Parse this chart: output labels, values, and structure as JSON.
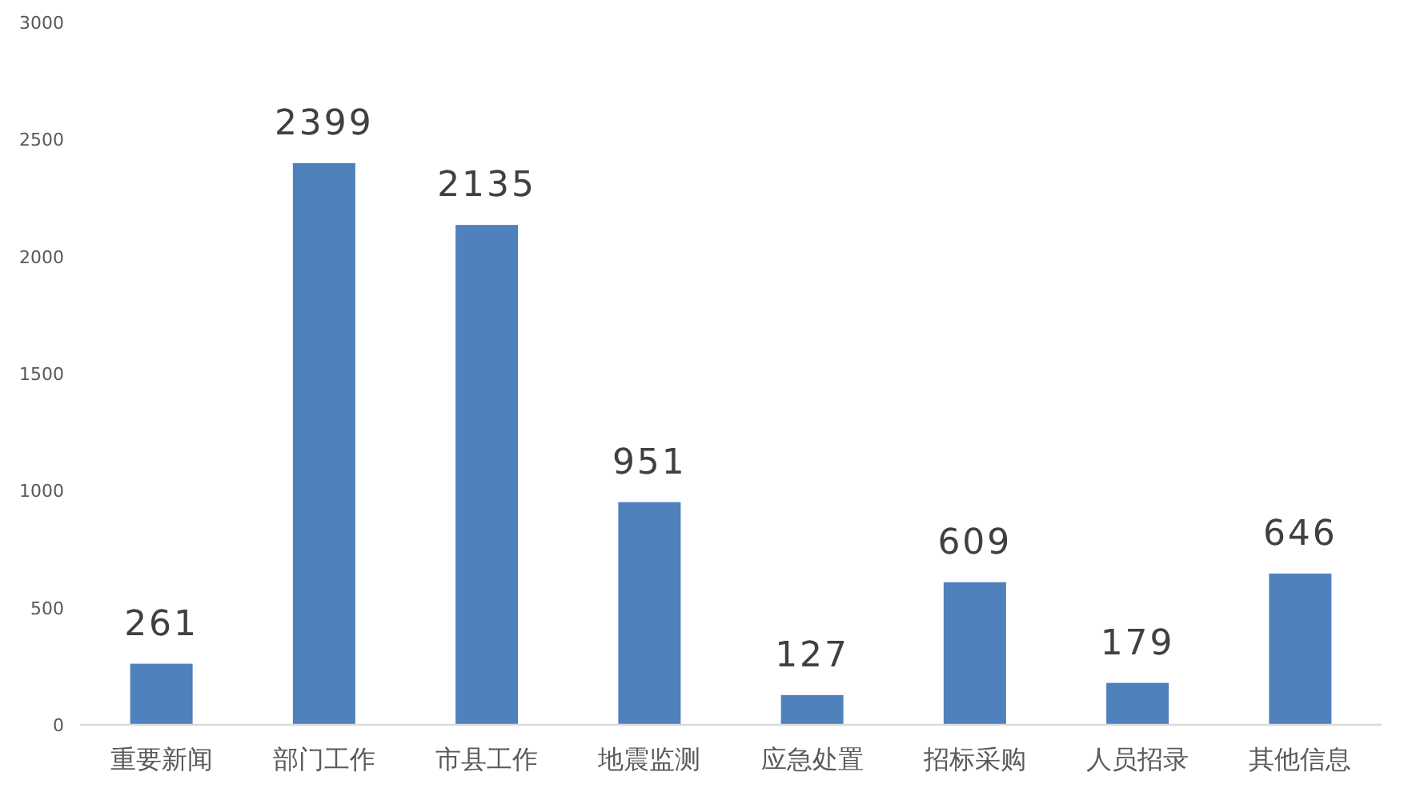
{
  "chart_data": {
    "type": "bar",
    "categories": [
      "重要新闻",
      "部门工作",
      "市县工作",
      "地震监测",
      "应急处置",
      "招标采购",
      "人员招录",
      "其他信息"
    ],
    "values": [
      261,
      2399,
      2135,
      951,
      127,
      609,
      179,
      646
    ],
    "color": "#4f81bd",
    "ylim": [
      0,
      3000
    ],
    "yticks": [
      0,
      500,
      1000,
      1500,
      2000,
      2500,
      3000
    ],
    "data_labels": true
  }
}
